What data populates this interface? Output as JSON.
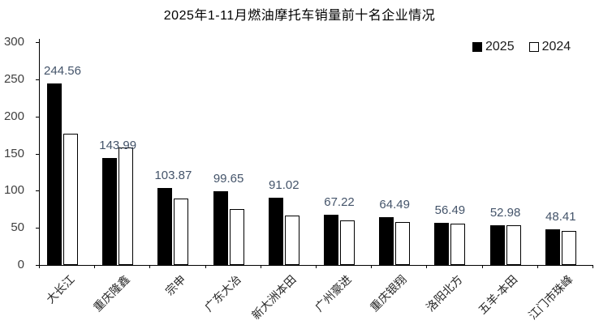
{
  "chart_data": {
    "type": "bar",
    "title": "2025年1-11月燃油摩托车销量前十名企业情况",
    "categories": [
      "大长江",
      "重庆隆鑫",
      "宗申",
      "广东大冶",
      "新大洲本田",
      "广州豪进",
      "重庆银翔",
      "洛阳北方",
      "五羊-本田",
      "江门市珠峰"
    ],
    "series": [
      {
        "name": "2025",
        "color": "#000000",
        "values": [
          244.56,
          143.99,
          103.87,
          99.65,
          91.02,
          67.22,
          64.49,
          56.49,
          52.98,
          48.41
        ],
        "data_labels": true
      },
      {
        "name": "2024",
        "color": "#ffffff",
        "values": [
          177,
          158,
          90,
          75,
          67,
          60,
          58,
          56,
          54,
          46
        ],
        "data_labels": false
      }
    ],
    "value_label_texts": [
      "244.56",
      "143.99",
      "103.87",
      "99.65",
      "91.02",
      "67.22",
      "64.49",
      "56.49",
      "52.98",
      "48.41"
    ],
    "ylim": [
      0,
      300
    ],
    "yticks": [
      0,
      50,
      100,
      150,
      200,
      250,
      300
    ],
    "grid": false,
    "legend_position": "top-right",
    "colors": {
      "bar_2025": "#000000",
      "bar_2024_fill": "#ffffff",
      "bar_2024_border": "#000000",
      "value_label": "#44546a",
      "axis_text": "#404040",
      "axis_line": "#000000"
    }
  }
}
